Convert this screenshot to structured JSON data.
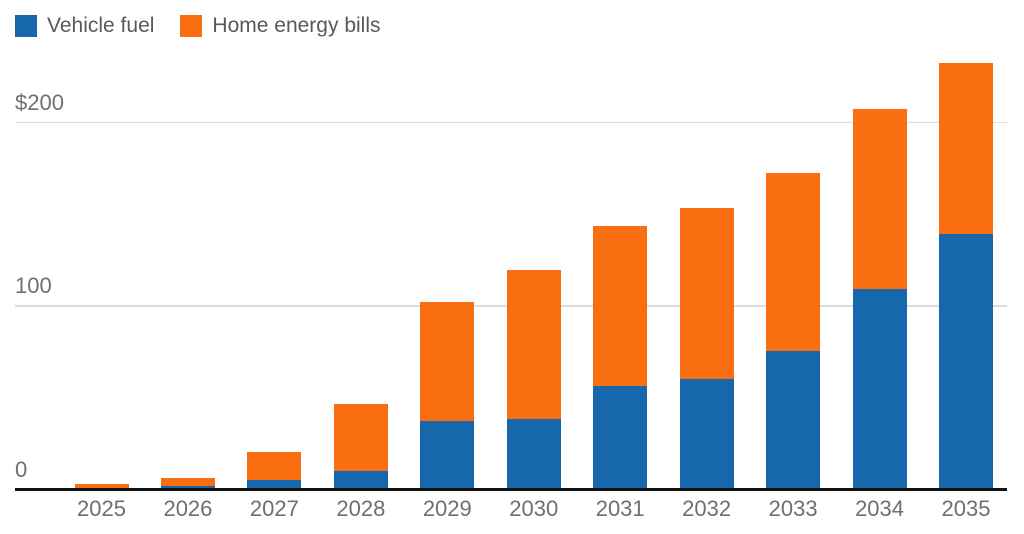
{
  "chart_data": {
    "type": "bar",
    "stacked": true,
    "title": "",
    "categories": [
      "2025",
      "2026",
      "2027",
      "2028",
      "2029",
      "2030",
      "2031",
      "2032",
      "2033",
      "2034",
      "2035"
    ],
    "series": [
      {
        "name": "Vehicle fuel",
        "color": "#1667ac",
        "values": [
          0.5,
          1.5,
          5,
          10,
          37,
          38,
          56,
          60,
          75,
          109,
          139
        ]
      },
      {
        "name": "Home energy bills",
        "color": "#f86e10",
        "values": [
          2,
          4.5,
          15,
          36,
          65,
          81,
          87,
          93,
          97,
          98,
          93
        ]
      }
    ],
    "totals": [
      2.5,
      6,
      20,
      46,
      102,
      119,
      143,
      153,
      172,
      207,
      232
    ],
    "xlabel": "",
    "ylabel": "",
    "ylim": [
      0,
      240
    ],
    "yticks": [
      {
        "value": 0,
        "label": "0"
      },
      {
        "value": 100,
        "label": "100"
      },
      {
        "value": 200,
        "label": "$200"
      }
    ],
    "grid": "horizontal",
    "legend_position": "top-left",
    "axis_color": "#111111",
    "gridline_color": "#dcdcdc",
    "tick_label_color": "#6f6f6f",
    "legend_label_color": "#595959"
  }
}
